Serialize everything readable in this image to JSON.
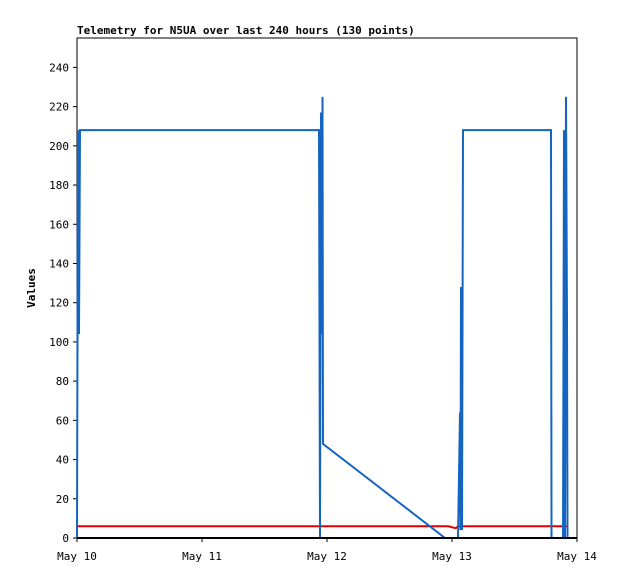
{
  "chart_data": {
    "type": "line",
    "title": "Telemetry for N5UA over last 240 hours (130 points)",
    "y_label": "Values",
    "xlim": [
      0,
      4
    ],
    "ylim": [
      0,
      255
    ],
    "xticks": [
      {
        "value": 0,
        "label": "May 10"
      },
      {
        "value": 1,
        "label": "May 11"
      },
      {
        "value": 2,
        "label": "May 12"
      },
      {
        "value": 3,
        "label": "May 13"
      },
      {
        "value": 4,
        "label": "May 14"
      }
    ],
    "yticks": [
      0,
      20,
      40,
      60,
      80,
      100,
      120,
      140,
      160,
      180,
      200,
      220,
      240
    ],
    "series": [
      {
        "color": "#1565c0",
        "x": [
          0,
          0.008,
          0.016,
          0.024,
          1.936,
          1.944,
          1.952,
          1.96,
          1.964,
          1.968,
          2.944,
          3.048,
          3.064,
          3.068,
          3.072,
          3.08,
          3.088,
          3.792,
          3.796,
          3.888,
          3.896,
          3.904,
          3.912,
          3.92,
          3.924
        ],
        "values": [
          0,
          208,
          104,
          208,
          208,
          0,
          217,
          104,
          225,
          48,
          0,
          0,
          64,
          4,
          128,
          4,
          208,
          208,
          0,
          0,
          208,
          0,
          225,
          112,
          0
        ]
      },
      {
        "color": "#e00000",
        "x": [
          0,
          2.97,
          3.03,
          3.05,
          3.92
        ],
        "values": [
          6,
          6,
          5,
          6,
          6
        ]
      }
    ]
  }
}
